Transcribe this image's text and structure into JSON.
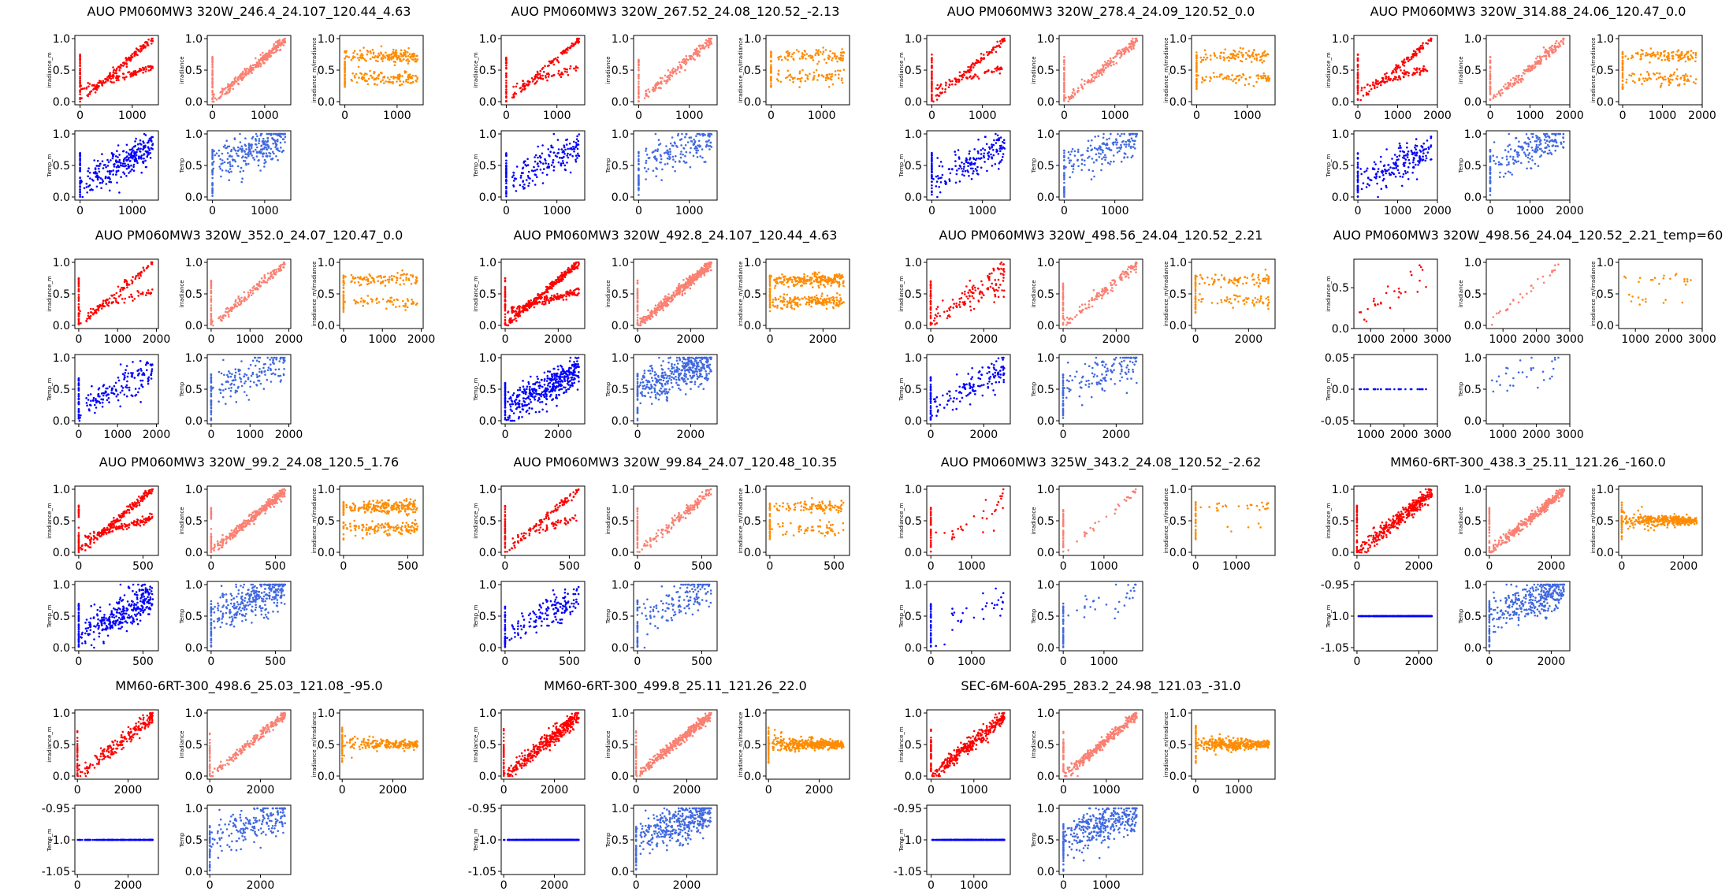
{
  "panel_titles": [
    "AUO PM060MW3 320W_246.4_24.107_120.44_4.63",
    "AUO PM060MW3 320W_267.52_24.08_120.52_-2.13",
    "AUO PM060MW3 320W_278.4_24.09_120.52_0.0",
    "AUO PM060MW3 320W_314.88_24.06_120.47_0.0",
    "AUO PM060MW3 320W_352.0_24.07_120.47_0.0",
    "AUO PM060MW3 320W_492.8_24.107_120.44_4.63",
    "AUO PM060MW3 320W_498.56_24.04_120.52_2.21",
    "AUO PM060MW3 320W_498.56_24.04_120.52_2.21_temp=60",
    "AUO PM060MW3 320W_99.2_24.08_120.5_1.76",
    "AUO PM060MW3 320W_99.84_24.07_120.48_10.35",
    "AUO PM060MW3 325W_343.2_24.08_120.52_-2.62",
    "MM60-6RT-300_438.3_25.11_121.26_-160.0",
    "MM60-6RT-300_498.6_25.03_121.08_-95.0",
    "MM60-6RT-300_499.8_25.11_121.26_22.0",
    "SEC-6M-60A-295_283.2_24.98_121.03_-31.0"
  ],
  "colors": {
    "irradiance_m": "#ff0000",
    "irradiance": "#fa8072",
    "ratio": "#ff8c00",
    "temp_m": "#0000ff",
    "temp": "#4169e1"
  },
  "chart_data": {
    "type": "scatter",
    "grid": false,
    "subplot_ylabels": {
      "irradiance_m": "irradiance_m",
      "irradiance": "irradiance",
      "ratio": "irradiance_m/irradiance",
      "temp_m": "Temp_m",
      "temp": "Temp"
    },
    "panels": [
      {
        "title": "AUO PM060MW3 320W_246.4_24.107_120.44_4.63",
        "xlim": [
          -100,
          1500
        ],
        "xticks": [
          0,
          1000
        ],
        "pattern": "double",
        "temp_m": "cloud",
        "n": 260
      },
      {
        "title": "AUO PM060MW3 320W_267.52_24.08_120.52_-2.13",
        "xlim": [
          -100,
          1550
        ],
        "xticks": [
          0,
          1000
        ],
        "pattern": "double",
        "temp_m": "cloud",
        "n": 160
      },
      {
        "title": "AUO PM060MW3 320W_278.4_24.09_120.52_0.0",
        "xlim": [
          -100,
          1550
        ],
        "xticks": [
          0,
          1000
        ],
        "pattern": "double",
        "temp_m": "cloud",
        "n": 160
      },
      {
        "title": "AUO PM060MW3 320W_314.88_24.06_120.47_0.0",
        "xlim": [
          -100,
          2000
        ],
        "xticks": [
          0,
          1000,
          2000
        ],
        "pattern": "double",
        "temp_m": "cloud",
        "n": 180
      },
      {
        "title": "AUO PM060MW3 320W_352.0_24.07_120.47_0.0",
        "xlim": [
          -100,
          2050
        ],
        "xticks": [
          0,
          1000,
          2000
        ],
        "pattern": "double",
        "temp_m": "cloud",
        "n": 150
      },
      {
        "title": "AUO PM060MW3 320W_492.8_24.107_120.44_4.63",
        "xlim": [
          -150,
          3000
        ],
        "xticks": [
          0,
          2000
        ],
        "pattern": "double",
        "temp_m": "cloud",
        "n": 400
      },
      {
        "title": "AUO PM060MW3 320W_498.56_24.04_120.52_2.21",
        "xlim": [
          -150,
          3000
        ],
        "xticks": [
          0,
          2000
        ],
        "pattern": "sparse",
        "temp_m": "cloud",
        "n": 130
      },
      {
        "title": "AUO PM060MW3 320W_498.56_24.04_120.52_2.21_temp=60",
        "xlim": [
          500,
          3000
        ],
        "xticks": [
          1000,
          2000,
          3000
        ],
        "pattern": "sparse",
        "temp_m": "flat0",
        "n": 30,
        "ylim_top": [
          0,
          0.85
        ],
        "yticks_top": [
          0.0,
          0.5
        ]
      },
      {
        "title": "AUO PM060MW3 320W_99.2_24.08_120.5_1.76",
        "xlim": [
          -30,
          620
        ],
        "xticks": [
          0,
          500
        ],
        "pattern": "double",
        "temp_m": "cloud",
        "n": 320
      },
      {
        "title": "AUO PM060MW3 320W_99.84_24.07_120.48_10.35",
        "xlim": [
          -30,
          620
        ],
        "xticks": [
          0,
          500
        ],
        "pattern": "double",
        "temp_m": "cloud",
        "n": 150
      },
      {
        "title": "AUO PM060MW3 325W_343.2_24.08_120.52_-2.62",
        "xlim": [
          -100,
          1950
        ],
        "xticks": [
          0,
          1000
        ],
        "pattern": "sparse",
        "temp_m": "cloud",
        "n": 30
      },
      {
        "title": "MM60-6RT-300_438.3_25.11_121.26_-160.0",
        "xlim": [
          -100,
          2600
        ],
        "xticks": [
          0,
          2000
        ],
        "pattern": "linear",
        "temp_m": "flatneg",
        "n": 330
      },
      {
        "title": "MM60-6RT-300_498.6_25.03_121.08_-95.0",
        "xlim": [
          -100,
          3200
        ],
        "xticks": [
          0,
          2000
        ],
        "pattern": "linear",
        "temp_m": "flatneg",
        "n": 200
      },
      {
        "title": "MM60-6RT-300_499.8_25.11_121.26_22.0",
        "xlim": [
          -100,
          3200
        ],
        "xticks": [
          0,
          2000
        ],
        "pattern": "linear",
        "temp_m": "flatneg",
        "n": 380
      },
      {
        "title": "SEC-6M-60A-295_283.2_24.98_121.03_-31.0",
        "xlim": [
          -100,
          1850
        ],
        "xticks": [
          0,
          1000
        ],
        "pattern": "linear",
        "temp_m": "flatneg",
        "n": 340
      }
    ]
  }
}
